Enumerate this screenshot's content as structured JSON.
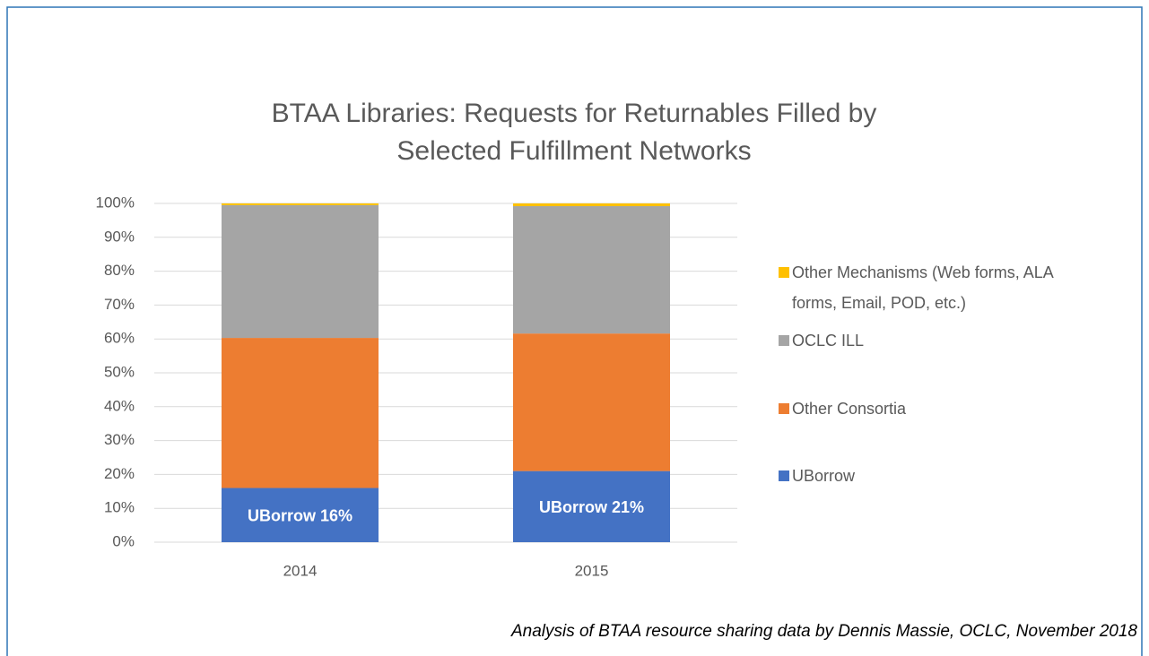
{
  "chart_data": {
    "type": "stacked_bar",
    "title": [
      "BTAA Libraries: Requests for Returnables Filled by",
      "Selected Fulfillment Networks"
    ],
    "categories": [
      "2014",
      "2015"
    ],
    "series": [
      {
        "name": "UBorrow",
        "color": "#4472c4",
        "values": [
          16,
          21
        ],
        "value_labels": [
          "UBorrow 16%",
          "UBorrow 21%"
        ]
      },
      {
        "name": "Other Consortia",
        "color": "#ed7d31",
        "values": [
          44.3,
          40.6
        ]
      },
      {
        "name": "OCLC ILL",
        "color": "#a5a5a5",
        "values": [
          39.2,
          37.6
        ]
      },
      {
        "name": "Other Mechanisms (Web forms, ALA forms, Email, POD, etc.)",
        "color": "#ffc000",
        "values": [
          0.5,
          0.8
        ]
      }
    ],
    "ylim": [
      0,
      100
    ],
    "yticks": [
      {
        "value": 0,
        "label": "0%"
      },
      {
        "value": 10,
        "label": "10%"
      },
      {
        "value": 20,
        "label": "20%"
      },
      {
        "value": 30,
        "label": "30%"
      },
      {
        "value": 40,
        "label": "40%"
      },
      {
        "value": 50,
        "label": "50%"
      },
      {
        "value": 60,
        "label": "60%"
      },
      {
        "value": 70,
        "label": "70%"
      },
      {
        "value": 80,
        "label": "80%"
      },
      {
        "value": 90,
        "label": "90%"
      },
      {
        "value": 100,
        "label": "100%"
      }
    ],
    "grid": true,
    "legend": "right",
    "footnote": "Analysis of BTAA resource sharing data by Dennis Massie, OCLC, November 2018"
  }
}
